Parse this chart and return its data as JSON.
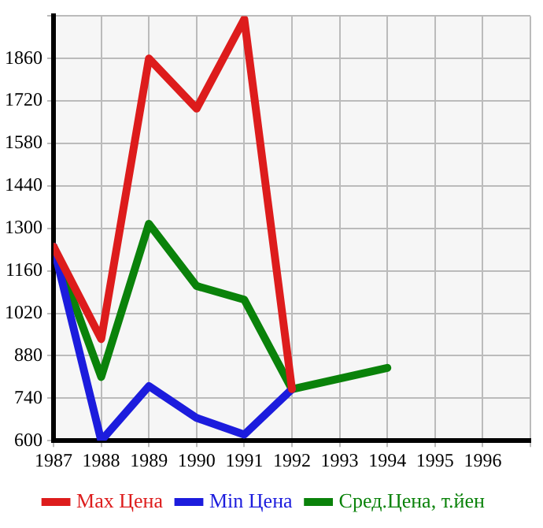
{
  "chart_data": {
    "type": "line",
    "x": [
      1987,
      1988,
      1989,
      1990,
      1991,
      1992,
      1993,
      1994
    ],
    "series": [
      {
        "name": "Max Цена",
        "color": "#dd1c1c",
        "values": [
          1240,
          935,
          1860,
          1695,
          1990,
          770,
          null,
          null
        ]
      },
      {
        "name": "Min Цена",
        "color": "#1c1cdd",
        "values": [
          1240,
          600,
          780,
          675,
          620,
          770,
          null,
          null
        ]
      },
      {
        "name": "Сред.Цена, т.йен",
        "color": "#0a820a",
        "values": [
          1240,
          810,
          1315,
          1110,
          1065,
          770,
          805,
          840
        ]
      }
    ],
    "xlim": [
      1987,
      1997
    ],
    "xticks": [
      1987,
      1988,
      1989,
      1990,
      1991,
      1992,
      1993,
      1994,
      1995,
      1996,
      {
        "value": 1997,
        "label": null
      }
    ],
    "ylim": [
      600,
      2000
    ],
    "yticks": [
      600,
      740,
      880,
      1020,
      1160,
      1300,
      1440,
      1580,
      1720,
      1860,
      {
        "value": 2000,
        "label": null
      }
    ],
    "grid": true,
    "legend": "bottom",
    "marker": "none",
    "line_style": "solid"
  }
}
